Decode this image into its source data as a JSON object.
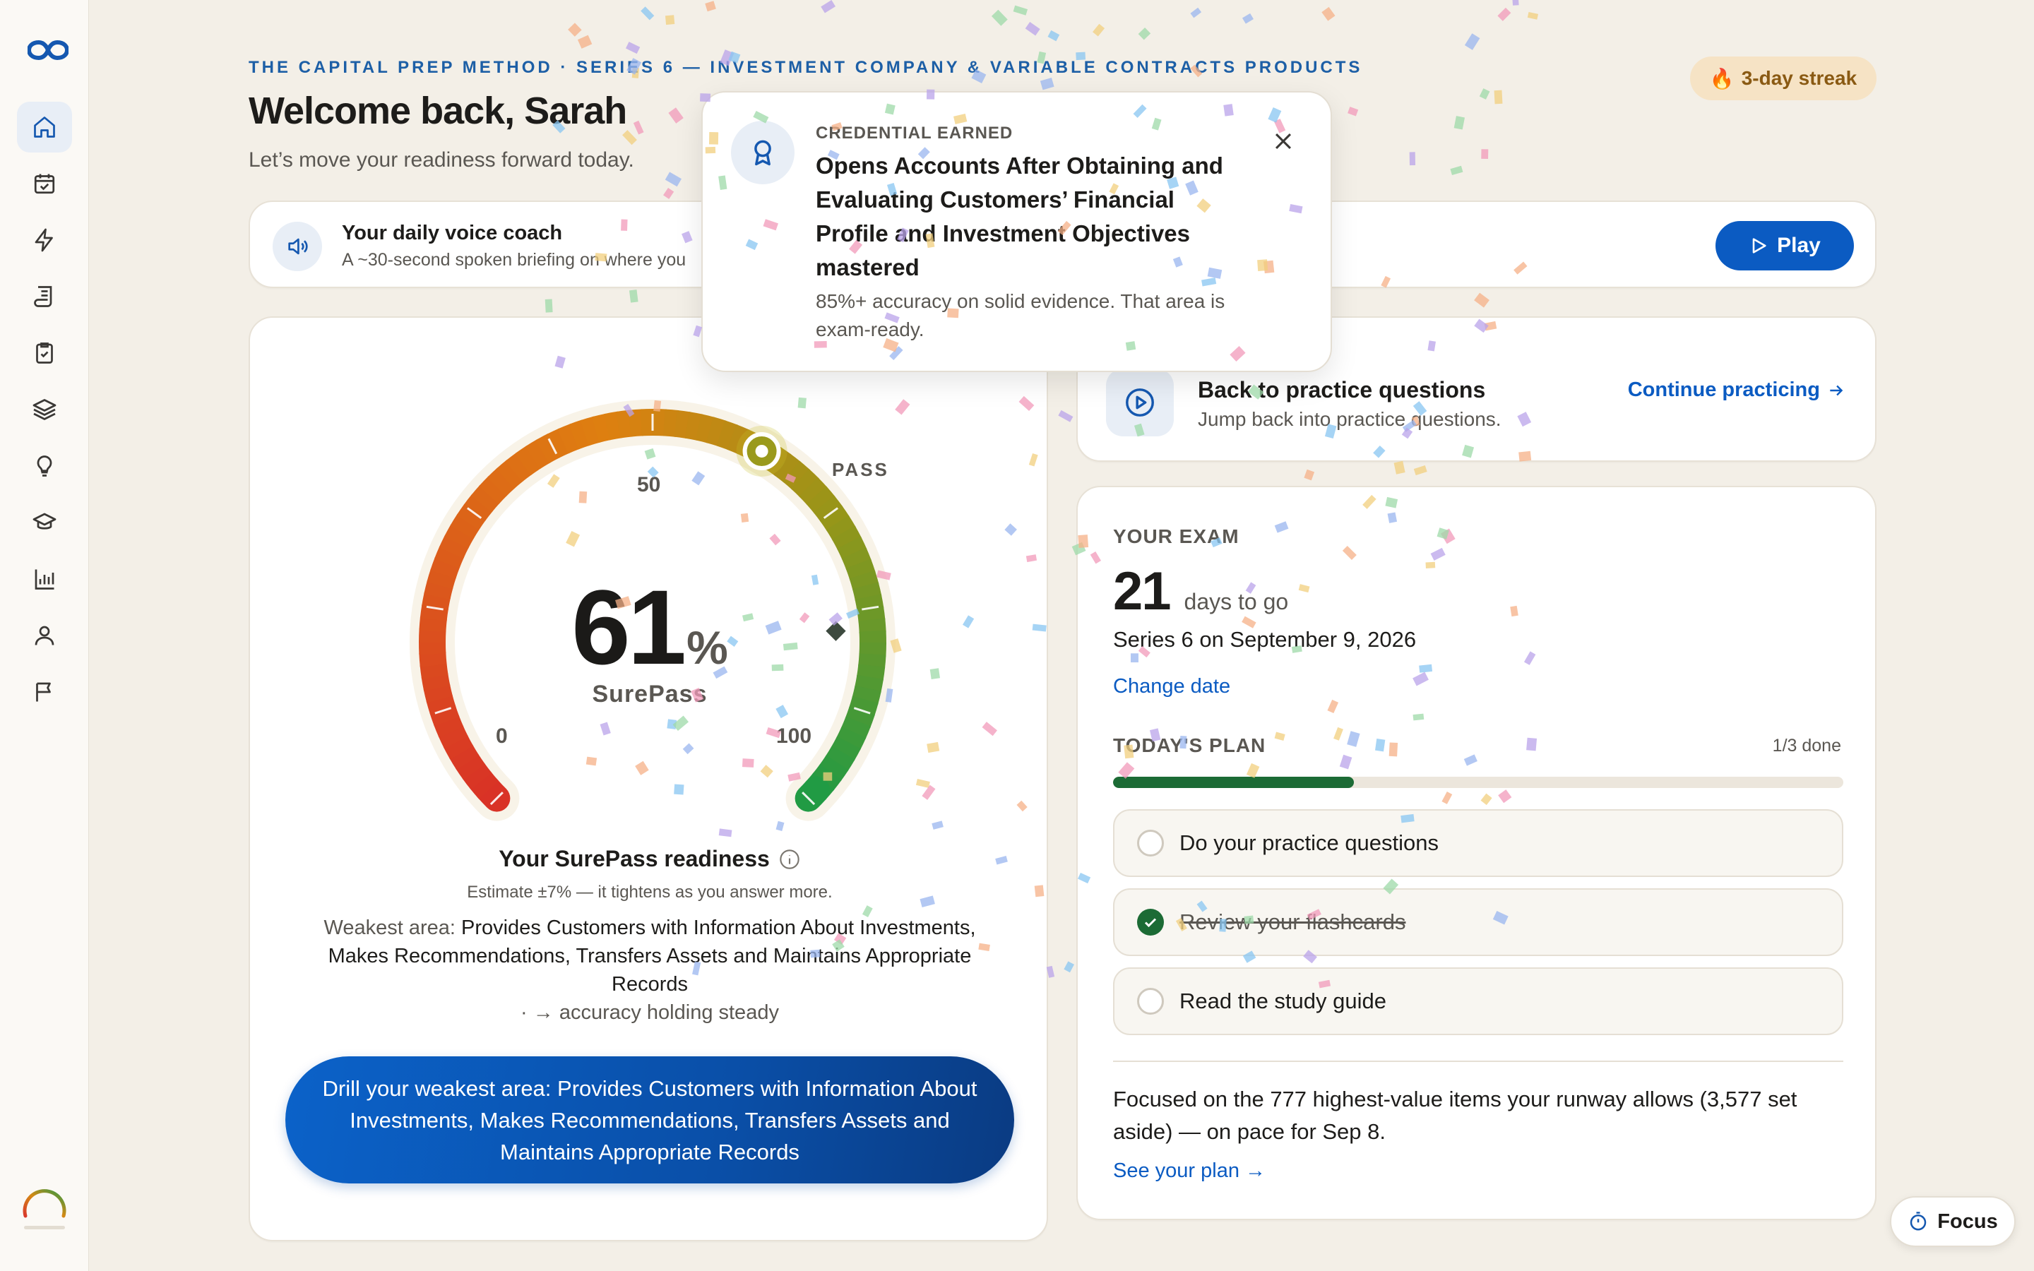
{
  "header": {
    "eyebrow": "THE CAPITAL PREP METHOD · SERIES 6 — INVESTMENT COMPANY & VARIABLE CONTRACTS PRODUCTS",
    "title": "Welcome back, Sarah",
    "subtitle": "Let’s move your readiness forward today.",
    "streak": "3-day streak"
  },
  "sidebar": {
    "items": [
      {
        "icon": "home-icon",
        "active": true
      },
      {
        "icon": "calendar-check-icon"
      },
      {
        "icon": "lightning-icon"
      },
      {
        "icon": "scroll-icon"
      },
      {
        "icon": "clipboard-check-icon"
      },
      {
        "icon": "layers-icon"
      },
      {
        "icon": "lightbulb-icon"
      },
      {
        "icon": "graduation-cap-icon"
      },
      {
        "icon": "bar-chart-icon"
      },
      {
        "icon": "user-icon"
      },
      {
        "icon": "flag-icon"
      }
    ]
  },
  "voice": {
    "title": "Your daily voice coach",
    "subtitle": "A ~30-second spoken briefing on where you",
    "play_label": "Play"
  },
  "toast": {
    "eyebrow": "CREDENTIAL EARNED",
    "title": "Opens Accounts After Obtaining and Evaluating Customers’ Financial Profile and Investment Objectives mastered",
    "body": "85%+ accuracy on solid evidence. That area is exam-ready."
  },
  "readiness": {
    "value": 61,
    "pct_sign": "%",
    "gauge_label": "SurePass",
    "tick_min": "0",
    "tick_mid": "50",
    "tick_max": "100",
    "pass_label": "PASS",
    "pass_value": 82,
    "title": "Your SurePass readiness",
    "estimate": "Estimate ±7% — it tightens as you answer more.",
    "weakest_lead": "Weakest area: ",
    "weakest_area": "Provides Customers with Information About Investments, Makes Recommendations, Transfers Assets and Maintains Appropriate Records",
    "trend": "· → accuracy holding steady",
    "drill_label": "Drill your weakest area: Provides Customers with Information About Investments, Makes Recommendations, Transfers Assets and Maintains Appropriate Records"
  },
  "practice": {
    "title": "Back to practice questions",
    "subtitle": "Jump back into practice questions.",
    "link": "Continue practicing"
  },
  "exam": {
    "label": "YOUR EXAM",
    "days": "21",
    "days_text": "days to go",
    "date_text": "Series 6 on September 9, 2026",
    "change_date": "Change date",
    "plan_label": "TODAY'S PLAN",
    "plan_count": "1/3 done",
    "progress": 0.33,
    "tasks": [
      {
        "label": "Do your practice questions",
        "done": false
      },
      {
        "label": "Review your flashcards",
        "done": true
      },
      {
        "label": "Read the study guide",
        "done": false
      }
    ],
    "focus_text": "Focused on the 777 highest-value items your runway allows (3,577 set aside) — on pace for Sep 8.",
    "see_plan": "See your plan →"
  },
  "focus_button": "Focus",
  "colors": {
    "accent": "#0b5bc2",
    "success": "#1c6b35",
    "background": "#f3efe7"
  }
}
